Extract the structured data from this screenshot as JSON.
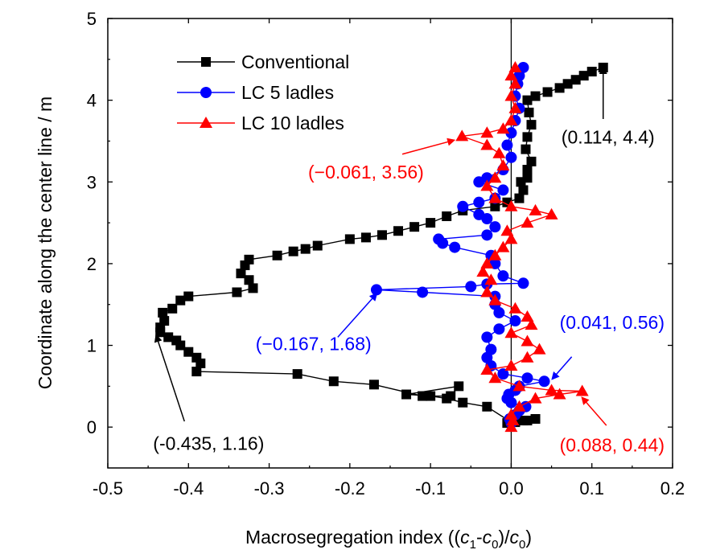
{
  "chart_data": {
    "type": "line",
    "xlabel": {
      "prefix": "Macrosegregation index ((",
      "c1": "c",
      "c1_sub": "1",
      "minus": "-",
      "c0": "c",
      "c0_sub": "0",
      "mid": ")/",
      "c0b": "c",
      "c0b_sub": "0",
      "suffix": ")"
    },
    "ylabel": "Coordinate along the center line / m",
    "xlim": [
      -0.5,
      0.2
    ],
    "ylim": [
      -0.5,
      5
    ],
    "xticks": [
      -0.5,
      -0.4,
      -0.3,
      -0.2,
      -0.1,
      0.0,
      0.1,
      0.2
    ],
    "xtick_labels": [
      "-0.5",
      "-0.4",
      "-0.3",
      "-0.2",
      "-0.1",
      "0.0",
      "0.1",
      "0.2"
    ],
    "yticks": [
      0,
      1,
      2,
      3,
      4,
      5
    ],
    "ytick_labels": [
      "0",
      "1",
      "2",
      "3",
      "4",
      "5"
    ],
    "zero_line_x": 0,
    "legend_position": "top-left",
    "series": [
      {
        "name": "Conventional",
        "color": "#000000",
        "marker": "square",
        "points": [
          [
            -0.005,
            0.05
          ],
          [
            0.005,
            0.06
          ],
          [
            0.015,
            0.08
          ],
          [
            0.03,
            0.1
          ],
          [
            0.02,
            0.08
          ],
          [
            0.0,
            0.06
          ],
          [
            -0.03,
            0.25
          ],
          [
            -0.06,
            0.3
          ],
          [
            -0.08,
            0.35
          ],
          [
            -0.1,
            0.38
          ],
          [
            -0.13,
            0.4
          ],
          [
            -0.065,
            0.5
          ],
          [
            -0.075,
            0.38
          ],
          [
            -0.11,
            0.38
          ],
          [
            -0.17,
            0.52
          ],
          [
            -0.22,
            0.56
          ],
          [
            -0.265,
            0.65
          ],
          [
            -0.39,
            0.68
          ],
          [
            -0.385,
            0.78
          ],
          [
            -0.39,
            0.85
          ],
          [
            -0.4,
            0.92
          ],
          [
            -0.41,
            1.0
          ],
          [
            -0.415,
            1.06
          ],
          [
            -0.425,
            1.1
          ],
          [
            -0.435,
            1.16
          ],
          [
            -0.435,
            1.22
          ],
          [
            -0.43,
            1.3
          ],
          [
            -0.432,
            1.4
          ],
          [
            -0.42,
            1.45
          ],
          [
            -0.41,
            1.55
          ],
          [
            -0.4,
            1.6
          ],
          [
            -0.34,
            1.65
          ],
          [
            -0.32,
            1.7
          ],
          [
            -0.325,
            1.8
          ],
          [
            -0.335,
            1.88
          ],
          [
            -0.33,
            1.98
          ],
          [
            -0.325,
            2.05
          ],
          [
            -0.29,
            2.1
          ],
          [
            -0.27,
            2.15
          ],
          [
            -0.255,
            2.18
          ],
          [
            -0.24,
            2.22
          ],
          [
            -0.2,
            2.3
          ],
          [
            -0.18,
            2.32
          ],
          [
            -0.16,
            2.35
          ],
          [
            -0.14,
            2.4
          ],
          [
            -0.12,
            2.45
          ],
          [
            -0.1,
            2.5
          ],
          [
            -0.08,
            2.58
          ],
          [
            -0.06,
            2.65
          ],
          [
            -0.02,
            2.7
          ],
          [
            -0.005,
            2.75
          ],
          [
            0.01,
            2.8
          ],
          [
            0.015,
            2.9
          ],
          [
            0.012,
            3.0
          ],
          [
            0.02,
            3.05
          ],
          [
            0.02,
            3.15
          ],
          [
            0.025,
            3.25
          ],
          [
            0.018,
            3.4
          ],
          [
            0.02,
            3.55
          ],
          [
            0.025,
            3.7
          ],
          [
            0.022,
            3.85
          ],
          [
            0.02,
            4.0
          ],
          [
            0.03,
            4.05
          ],
          [
            0.045,
            4.1
          ],
          [
            0.06,
            4.15
          ],
          [
            0.07,
            4.2
          ],
          [
            0.08,
            4.25
          ],
          [
            0.09,
            4.3
          ],
          [
            0.1,
            4.35
          ],
          [
            0.114,
            4.4
          ]
        ]
      },
      {
        "name": "LC 5 ladles",
        "color": "#0000ff",
        "marker": "circle",
        "points": [
          [
            0.0,
            0.05
          ],
          [
            -0.002,
            0.1
          ],
          [
            0.005,
            0.15
          ],
          [
            0.01,
            0.2
          ],
          [
            0.018,
            0.25
          ],
          [
            0.0,
            0.3
          ],
          [
            -0.005,
            0.35
          ],
          [
            -0.003,
            0.4
          ],
          [
            0.005,
            0.45
          ],
          [
            0.01,
            0.5
          ],
          [
            0.041,
            0.56
          ],
          [
            0.02,
            0.6
          ],
          [
            -0.01,
            0.65
          ],
          [
            -0.025,
            0.75
          ],
          [
            -0.03,
            0.85
          ],
          [
            -0.025,
            0.95
          ],
          [
            -0.03,
            1.1
          ],
          [
            -0.015,
            1.2
          ],
          [
            0.005,
            1.3
          ],
          [
            -0.015,
            1.4
          ],
          [
            -0.02,
            1.5
          ],
          [
            -0.02,
            1.6
          ],
          [
            -0.11,
            1.65
          ],
          [
            -0.167,
            1.68
          ],
          [
            -0.05,
            1.72
          ],
          [
            -0.03,
            1.75
          ],
          [
            0.015,
            1.76
          ],
          [
            -0.01,
            1.85
          ],
          [
            -0.02,
            2.0
          ],
          [
            -0.025,
            2.1
          ],
          [
            -0.07,
            2.2
          ],
          [
            -0.085,
            2.25
          ],
          [
            -0.09,
            2.3
          ],
          [
            -0.03,
            2.35
          ],
          [
            -0.02,
            2.45
          ],
          [
            -0.03,
            2.55
          ],
          [
            -0.04,
            2.6
          ],
          [
            -0.06,
            2.7
          ],
          [
            -0.04,
            2.75
          ],
          [
            -0.02,
            2.8
          ],
          [
            -0.01,
            2.9
          ],
          [
            -0.04,
            3.0
          ],
          [
            -0.03,
            3.05
          ],
          [
            -0.01,
            3.15
          ],
          [
            0.0,
            3.3
          ],
          [
            -0.005,
            3.45
          ],
          [
            0.0,
            3.6
          ],
          [
            0.005,
            3.75
          ],
          [
            0.01,
            3.9
          ],
          [
            0.005,
            4.05
          ],
          [
            0.008,
            4.2
          ],
          [
            0.01,
            4.3
          ],
          [
            0.015,
            4.4
          ]
        ]
      },
      {
        "name": "LC 10 ladles",
        "color": "#ff0000",
        "marker": "triangle",
        "points": [
          [
            0.0,
            0.0
          ],
          [
            0.002,
            0.08
          ],
          [
            0.0,
            0.15
          ],
          [
            0.01,
            0.25
          ],
          [
            0.03,
            0.35
          ],
          [
            0.06,
            0.4
          ],
          [
            0.088,
            0.44
          ],
          [
            0.05,
            0.45
          ],
          [
            0.01,
            0.5
          ],
          [
            -0.02,
            0.6
          ],
          [
            -0.03,
            0.7
          ],
          [
            0.0,
            0.75
          ],
          [
            0.02,
            0.85
          ],
          [
            0.035,
            0.95
          ],
          [
            0.02,
            1.05
          ],
          [
            0.0,
            1.15
          ],
          [
            0.025,
            1.25
          ],
          [
            0.02,
            1.35
          ],
          [
            0.005,
            1.45
          ],
          [
            -0.02,
            1.55
          ],
          [
            -0.03,
            1.65
          ],
          [
            -0.025,
            1.8
          ],
          [
            -0.035,
            1.9
          ],
          [
            -0.03,
            2.0
          ],
          [
            -0.02,
            2.1
          ],
          [
            -0.01,
            2.2
          ],
          [
            0.0,
            2.3
          ],
          [
            -0.005,
            2.4
          ],
          [
            0.02,
            2.5
          ],
          [
            0.05,
            2.6
          ],
          [
            0.03,
            2.65
          ],
          [
            0.0,
            2.7
          ],
          [
            -0.02,
            2.8
          ],
          [
            -0.03,
            2.95
          ],
          [
            -0.02,
            3.05
          ],
          [
            -0.01,
            3.2
          ],
          [
            -0.015,
            3.35
          ],
          [
            -0.03,
            3.45
          ],
          [
            -0.061,
            3.56
          ],
          [
            -0.03,
            3.6
          ],
          [
            -0.01,
            3.65
          ],
          [
            0.0,
            3.75
          ],
          [
            0.005,
            3.9
          ],
          [
            0.0,
            4.05
          ],
          [
            0.005,
            4.2
          ],
          [
            0.0,
            4.3
          ],
          [
            0.005,
            4.4
          ]
        ]
      }
    ],
    "annotations": [
      {
        "text": "(0.114, 4.4)",
        "color": "#000000",
        "target": [
          0.114,
          4.4
        ],
        "text_at": [
          0.12,
          3.47
        ],
        "anchor": "middle",
        "arrow_from": [
          0.114,
          3.77
        ]
      },
      {
        "text": "(−0.061, 3.56)",
        "color": "#ff0000",
        "target": [
          -0.071,
          3.51
        ],
        "text_at": [
          -0.18,
          3.04
        ],
        "anchor": "middle",
        "arrow_from": [
          -0.135,
          3.34
        ]
      },
      {
        "text": "(−0.167, 1.68)",
        "color": "#0000ff",
        "target": [
          -0.167,
          1.63
        ],
        "text_at": [
          -0.245,
          0.94
        ],
        "anchor": "middle",
        "arrow_from": [
          -0.215,
          1.1
        ]
      },
      {
        "text": "(0.041, 0.56)",
        "color": "#0000ff",
        "target": [
          0.051,
          0.59
        ],
        "text_at": [
          0.125,
          1.2
        ],
        "anchor": "middle",
        "arrow_from": [
          0.075,
          0.86
        ]
      },
      {
        "text": "(-0.435, 1.16)",
        "color": "#000000",
        "target": [
          -0.44,
          1.12
        ],
        "text_at": [
          -0.375,
          -0.28
        ],
        "anchor": "middle",
        "arrow_from": [
          -0.405,
          0.07
        ]
      },
      {
        "text": "(0.088, 0.44)",
        "color": "#ff0000",
        "target": [
          0.088,
          0.36
        ],
        "text_at": [
          0.125,
          -0.3
        ],
        "anchor": "middle",
        "arrow_from": [
          0.118,
          0.02
        ]
      }
    ]
  }
}
